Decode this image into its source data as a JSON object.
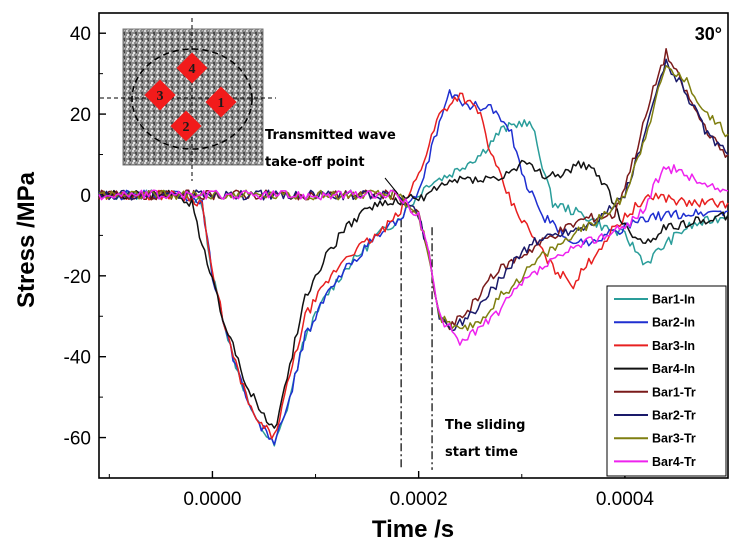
{
  "chart_data": {
    "type": "line",
    "xlabel": "Time /s",
    "ylabel": "Stress /MPa",
    "xlim": [
      -0.00011,
      0.0005
    ],
    "ylim": [
      -70,
      45
    ],
    "xticks": [
      0.0,
      0.0002,
      0.0004
    ],
    "xtick_labels": [
      "0.0000",
      "0.0002",
      "0.0004"
    ],
    "yticks": [
      -60,
      -40,
      -20,
      0,
      20,
      40
    ],
    "ytick_labels": [
      "-60",
      "-40",
      "-20",
      "0",
      "20",
      "40"
    ],
    "grid": false,
    "legend_position": "bottom-right",
    "angle_label": "30°",
    "annotations": {
      "takeoff_line1": "Transmitted wave",
      "takeoff_line2": "take-off point",
      "sliding_line1": "The sliding",
      "sliding_line2": "start time"
    },
    "vlines": [
      0.000183,
      0.000213
    ],
    "inset": {
      "bar_labels": [
        "1",
        "2",
        "3",
        "4"
      ]
    },
    "series": [
      {
        "name": "Bar1-In",
        "color": "#2a9d9a",
        "points": [
          [
            -0.00011,
            0
          ],
          [
            -3e-05,
            0
          ],
          [
            -1e-05,
            -2
          ],
          [
            0,
            -20
          ],
          [
            2e-05,
            -40
          ],
          [
            4e-05,
            -55
          ],
          [
            6e-05,
            -62
          ],
          [
            7e-05,
            -55
          ],
          [
            9e-05,
            -35
          ],
          [
            0.00011,
            -25
          ],
          [
            0.00013,
            -18
          ],
          [
            0.00016,
            -10
          ],
          [
            0.00018,
            -6
          ],
          [
            0.0002,
            0
          ],
          [
            0.00021,
            3
          ],
          [
            0.00023,
            5
          ],
          [
            0.00026,
            10
          ],
          [
            0.00028,
            16
          ],
          [
            0.0003,
            18
          ],
          [
            0.00031,
            17
          ],
          [
            0.00033,
            -2
          ],
          [
            0.00036,
            -5
          ],
          [
            0.00038,
            -8
          ],
          [
            0.0004,
            -10
          ],
          [
            0.00042,
            -17
          ],
          [
            0.00044,
            -12
          ],
          [
            0.00046,
            -8
          ],
          [
            0.0005,
            -5
          ]
        ]
      },
      {
        "name": "Bar2-In",
        "color": "#1f2fd0",
        "points": [
          [
            -0.00011,
            0
          ],
          [
            -3e-05,
            0
          ],
          [
            -1e-05,
            -2
          ],
          [
            0,
            -20
          ],
          [
            2e-05,
            -40
          ],
          [
            4e-05,
            -55
          ],
          [
            6e-05,
            -61
          ],
          [
            7e-05,
            -55
          ],
          [
            9e-05,
            -35
          ],
          [
            0.00011,
            -25
          ],
          [
            0.00013,
            -18
          ],
          [
            0.00016,
            -10
          ],
          [
            0.00018,
            -6
          ],
          [
            0.0002,
            0
          ],
          [
            0.00022,
            18
          ],
          [
            0.00023,
            25
          ],
          [
            0.00025,
            22
          ],
          [
            0.00027,
            22
          ],
          [
            0.00029,
            15
          ],
          [
            0.0003,
            5
          ],
          [
            0.00032,
            -5
          ],
          [
            0.00034,
            -10
          ],
          [
            0.00036,
            -12
          ],
          [
            0.00038,
            -10
          ],
          [
            0.0004,
            -8
          ],
          [
            0.00042,
            -6
          ],
          [
            0.00044,
            -5
          ],
          [
            0.0005,
            -4
          ]
        ]
      },
      {
        "name": "Bar3-In",
        "color": "#e82020",
        "points": [
          [
            -0.00011,
            0
          ],
          [
            -3e-05,
            0
          ],
          [
            -1e-05,
            -2
          ],
          [
            0,
            -20
          ],
          [
            2e-05,
            -40
          ],
          [
            4e-05,
            -55
          ],
          [
            6e-05,
            -60
          ],
          [
            7e-05,
            -50
          ],
          [
            9e-05,
            -30
          ],
          [
            0.00011,
            -22
          ],
          [
            0.00013,
            -15
          ],
          [
            0.00016,
            -10
          ],
          [
            0.00018,
            -5
          ],
          [
            0.0002,
            5
          ],
          [
            0.00022,
            20
          ],
          [
            0.00024,
            25
          ],
          [
            0.00026,
            20
          ],
          [
            0.00027,
            10
          ],
          [
            0.00029,
            -2
          ],
          [
            0.00031,
            -10
          ],
          [
            0.00033,
            -18
          ],
          [
            0.00035,
            -22
          ],
          [
            0.00037,
            -15
          ],
          [
            0.00039,
            -8
          ],
          [
            0.00041,
            -3
          ],
          [
            0.00043,
            0
          ],
          [
            0.00046,
            -2
          ],
          [
            0.0005,
            -2
          ]
        ]
      },
      {
        "name": "Bar4-In",
        "color": "#111111",
        "points": [
          [
            -0.00011,
            0
          ],
          [
            -4e-05,
            0
          ],
          [
            -2e-05,
            -2
          ],
          [
            -1e-05,
            -12
          ],
          [
            1e-05,
            -30
          ],
          [
            3e-05,
            -45
          ],
          [
            5e-05,
            -55
          ],
          [
            6e-05,
            -58
          ],
          [
            7e-05,
            -48
          ],
          [
            9e-05,
            -25
          ],
          [
            0.00011,
            -15
          ],
          [
            0.00013,
            -8
          ],
          [
            0.00015,
            -3
          ],
          [
            0.00017,
            -2
          ],
          [
            0.00019,
            -1
          ],
          [
            0.0002,
            -1
          ],
          [
            0.00022,
            2
          ],
          [
            0.00024,
            4
          ],
          [
            0.00026,
            4
          ],
          [
            0.00028,
            4
          ],
          [
            0.0003,
            8
          ],
          [
            0.00032,
            5
          ],
          [
            0.00034,
            5
          ],
          [
            0.00036,
            8
          ],
          [
            0.00038,
            3
          ],
          [
            0.0004,
            -8
          ],
          [
            0.00042,
            -12
          ],
          [
            0.00044,
            -8
          ],
          [
            0.0005,
            -5
          ]
        ]
      },
      {
        "name": "Bar1-Tr",
        "color": "#7a1a1a",
        "points": [
          [
            -0.00011,
            0
          ],
          [
            0.00018,
            0
          ],
          [
            0.0002,
            -5
          ],
          [
            0.00021,
            -15
          ],
          [
            0.00022,
            -30
          ],
          [
            0.00023,
            -33
          ],
          [
            0.00025,
            -28
          ],
          [
            0.00027,
            -20
          ],
          [
            0.0003,
            -15
          ],
          [
            0.00033,
            -10
          ],
          [
            0.00036,
            -6
          ],
          [
            0.00039,
            -5
          ],
          [
            0.00041,
            10
          ],
          [
            0.00043,
            28
          ],
          [
            0.00044,
            35
          ],
          [
            0.00045,
            30
          ],
          [
            0.00047,
            20
          ],
          [
            0.00049,
            12
          ],
          [
            0.0005,
            10
          ]
        ]
      },
      {
        "name": "Bar2-Tr",
        "color": "#1a1a6a",
        "points": [
          [
            -0.00011,
            0
          ],
          [
            0.00018,
            0
          ],
          [
            0.0002,
            -5
          ],
          [
            0.00021,
            -15
          ],
          [
            0.00022,
            -30
          ],
          [
            0.00023,
            -33
          ],
          [
            0.00025,
            -30
          ],
          [
            0.00027,
            -24
          ],
          [
            0.00029,
            -17
          ],
          [
            0.00031,
            -12
          ],
          [
            0.00033,
            -10
          ],
          [
            0.00036,
            -8
          ],
          [
            0.00038,
            -5
          ],
          [
            0.0004,
            0
          ],
          [
            0.00042,
            15
          ],
          [
            0.00043,
            25
          ],
          [
            0.00044,
            33
          ],
          [
            0.00046,
            25
          ],
          [
            0.00048,
            15
          ],
          [
            0.0005,
            10
          ]
        ]
      },
      {
        "name": "Bar3-Tr",
        "color": "#7f7f10",
        "points": [
          [
            -0.00011,
            0
          ],
          [
            0.00018,
            0
          ],
          [
            0.0002,
            -5
          ],
          [
            0.00021,
            -15
          ],
          [
            0.00022,
            -30
          ],
          [
            0.00024,
            -34
          ],
          [
            0.00026,
            -31
          ],
          [
            0.00028,
            -25
          ],
          [
            0.0003,
            -20
          ],
          [
            0.00032,
            -15
          ],
          [
            0.00035,
            -10
          ],
          [
            0.00038,
            -5
          ],
          [
            0.0004,
            0
          ],
          [
            0.00042,
            15
          ],
          [
            0.00044,
            32
          ],
          [
            0.00046,
            28
          ],
          [
            0.00048,
            20
          ],
          [
            0.0005,
            15
          ]
        ]
      },
      {
        "name": "Bar4-Tr",
        "color": "#ee22ee",
        "points": [
          [
            -0.00011,
            0
          ],
          [
            0.00018,
            0
          ],
          [
            0.0002,
            -5
          ],
          [
            0.00021,
            -15
          ],
          [
            0.00022,
            -30
          ],
          [
            0.00024,
            -36
          ],
          [
            0.00026,
            -33
          ],
          [
            0.00028,
            -28
          ],
          [
            0.0003,
            -22
          ],
          [
            0.00032,
            -18
          ],
          [
            0.00034,
            -15
          ],
          [
            0.00036,
            -12
          ],
          [
            0.00038,
            -10
          ],
          [
            0.0004,
            -8
          ],
          [
            0.00042,
            -3
          ],
          [
            0.00043,
            3
          ],
          [
            0.00044,
            7
          ],
          [
            0.00046,
            5
          ],
          [
            0.00048,
            2
          ],
          [
            0.0005,
            1
          ]
        ]
      }
    ]
  }
}
